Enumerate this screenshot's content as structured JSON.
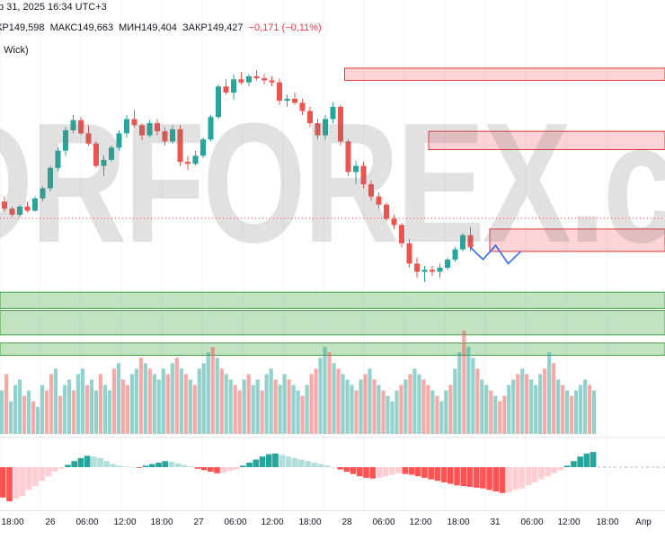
{
  "header": {
    "date_text": "р 31, 2025 16:34 UTC+3",
    "open": "КР149,598",
    "high": "МАКС149,663",
    "low": "МИН149,404",
    "close": "ЗАКР149,427",
    "change": "−0,171 (−0,11%)",
    "indicator_label": ", Wick)"
  },
  "watermark": {
    "text": "DRFOREX.c"
  },
  "x_axis": {
    "labels": [
      "18:00",
      "26",
      "06:00",
      "12:00",
      "18:00",
      "27",
      "06:00",
      "12:00",
      "18:00",
      "28",
      "06:00",
      "12:00",
      "18:00",
      "31",
      "06:00",
      "12:00",
      "18:00",
      "Апр"
    ]
  },
  "colors": {
    "bull": "#26a69a",
    "bear": "#ef5350",
    "zone_red": "#f7c6c9",
    "zone_green": "#bfe2bf",
    "projection": "#2962ff"
  },
  "chart_data": {
    "type": "candlestick",
    "candles": [
      [
        149.05,
        149.1,
        148.95,
        148.98
      ],
      [
        148.98,
        149.0,
        148.9,
        148.92
      ],
      [
        148.92,
        149.02,
        148.9,
        149.0
      ],
      [
        149.0,
        149.05,
        148.94,
        148.96
      ],
      [
        148.96,
        149.1,
        148.95,
        149.08
      ],
      [
        149.08,
        149.2,
        149.05,
        149.18
      ],
      [
        149.18,
        149.4,
        149.15,
        149.38
      ],
      [
        149.38,
        149.58,
        149.35,
        149.55
      ],
      [
        149.55,
        149.78,
        149.5,
        149.75
      ],
      [
        149.75,
        149.9,
        149.72,
        149.85
      ],
      [
        149.85,
        149.88,
        149.7,
        149.72
      ],
      [
        149.72,
        149.8,
        149.6,
        149.62
      ],
      [
        149.62,
        149.64,
        149.38,
        149.4
      ],
      [
        149.4,
        149.5,
        149.3,
        149.46
      ],
      [
        149.46,
        149.6,
        149.44,
        149.58
      ],
      [
        149.58,
        149.75,
        149.55,
        149.72
      ],
      [
        149.72,
        149.9,
        149.68,
        149.86
      ],
      [
        149.86,
        149.95,
        149.78,
        149.8
      ],
      [
        149.8,
        149.82,
        149.65,
        149.7
      ],
      [
        149.7,
        149.85,
        149.68,
        149.82
      ],
      [
        149.82,
        149.86,
        149.7,
        149.74
      ],
      [
        149.74,
        149.78,
        149.6,
        149.64
      ],
      [
        149.64,
        149.8,
        149.62,
        149.76
      ],
      [
        149.76,
        149.8,
        149.4,
        149.44
      ],
      [
        149.44,
        149.5,
        149.36,
        149.42
      ],
      [
        149.42,
        149.55,
        149.4,
        149.5
      ],
      [
        149.5,
        149.68,
        149.48,
        149.66
      ],
      [
        149.66,
        149.9,
        149.64,
        149.88
      ],
      [
        149.88,
        150.2,
        149.86,
        150.18
      ],
      [
        150.18,
        150.25,
        150.1,
        150.12
      ],
      [
        150.12,
        150.3,
        150.05,
        150.25
      ],
      [
        150.25,
        150.32,
        150.2,
        150.22
      ],
      [
        150.22,
        150.3,
        150.18,
        150.28
      ],
      [
        150.28,
        150.34,
        150.24,
        150.26
      ],
      [
        150.26,
        150.3,
        150.2,
        150.24
      ],
      [
        150.24,
        150.28,
        150.18,
        150.22
      ],
      [
        150.22,
        150.26,
        150.0,
        150.04
      ],
      [
        150.04,
        150.1,
        149.98,
        150.06
      ],
      [
        150.06,
        150.12,
        150.0,
        150.02
      ],
      [
        150.02,
        150.06,
        149.9,
        149.94
      ],
      [
        149.94,
        149.98,
        149.78,
        149.82
      ],
      [
        149.82,
        149.86,
        149.66,
        149.7
      ],
      [
        149.7,
        149.9,
        149.66,
        149.86
      ],
      [
        149.86,
        150.02,
        149.82,
        149.98
      ],
      [
        149.98,
        150.0,
        149.6,
        149.64
      ],
      [
        149.64,
        149.66,
        149.3,
        149.34
      ],
      [
        149.34,
        149.45,
        149.22,
        149.4
      ],
      [
        149.4,
        149.44,
        149.18,
        149.22
      ],
      [
        149.22,
        149.26,
        149.06,
        149.1
      ],
      [
        149.1,
        149.14,
        148.98,
        149.02
      ],
      [
        149.02,
        149.04,
        148.86,
        148.88
      ],
      [
        148.88,
        148.92,
        148.78,
        148.82
      ],
      [
        148.82,
        148.84,
        148.6,
        148.64
      ],
      [
        148.64,
        148.68,
        148.4,
        148.44
      ],
      [
        148.44,
        148.5,
        148.3,
        148.36
      ],
      [
        148.36,
        148.42,
        148.26,
        148.38
      ],
      [
        148.38,
        148.42,
        148.32,
        148.36
      ],
      [
        148.36,
        148.44,
        148.3,
        148.4
      ],
      [
        148.4,
        148.5,
        148.38,
        148.48
      ],
      [
        148.48,
        148.6,
        148.46,
        148.58
      ],
      [
        148.58,
        148.74,
        148.56,
        148.72
      ],
      [
        148.72,
        148.8,
        148.56,
        148.6
      ]
    ],
    "zones": [
      {
        "kind": "resistance",
        "from_index": 45,
        "top": 150.36,
        "bottom": 150.24
      },
      {
        "kind": "resistance",
        "from_index": 56,
        "top": 149.74,
        "bottom": 149.56
      },
      {
        "kind": "resistance",
        "from_index": 64,
        "top": 148.78,
        "bottom": 148.56
      },
      {
        "kind": "support",
        "from_index": 0,
        "top": 148.16,
        "bottom": 148.0
      },
      {
        "kind": "support",
        "from_index": 0,
        "top": 147.98,
        "bottom": 147.74
      },
      {
        "kind": "support",
        "from_index": 0,
        "top": 147.66,
        "bottom": 147.54
      }
    ],
    "projection": [
      148.6,
      148.48,
      148.62,
      148.44,
      148.56
    ],
    "volume": [
      40,
      55,
      30,
      45,
      50,
      35,
      40,
      30,
      25,
      45,
      40,
      55,
      60,
      35,
      45,
      50,
      40,
      55,
      60,
      45,
      50,
      40,
      55,
      45,
      40,
      60,
      65,
      50,
      45,
      55,
      60,
      70,
      65,
      60,
      55,
      50,
      60,
      55,
      65,
      70,
      60,
      55,
      50,
      45,
      60,
      65,
      75,
      80,
      70,
      60,
      55,
      50,
      45,
      40,
      50,
      55,
      45,
      50,
      40,
      55,
      60,
      50,
      45,
      55,
      50,
      45,
      40,
      35,
      45,
      55,
      60,
      70,
      80,
      75,
      65,
      60,
      55,
      50,
      45,
      40,
      50,
      55,
      60,
      50,
      45,
      40,
      35,
      30,
      40,
      45,
      50,
      55,
      60,
      55,
      50,
      45,
      40,
      35,
      30,
      40,
      45,
      60,
      75,
      95,
      80,
      70,
      60,
      50,
      45,
      40,
      35,
      30,
      35,
      45,
      50,
      55,
      60,
      55,
      50,
      45,
      55,
      60,
      75,
      65,
      50,
      45,
      40,
      35,
      40,
      45,
      50,
      45,
      40
    ],
    "momentum": [
      -40,
      -45,
      -42,
      -38,
      -30,
      -25,
      -18,
      -12,
      -6,
      -2,
      3,
      8,
      12,
      15,
      14,
      12,
      8,
      4,
      2,
      1,
      0,
      -1,
      2,
      4,
      6,
      8,
      7,
      5,
      3,
      1,
      -2,
      -4,
      -6,
      -8,
      -7,
      -5,
      -3,
      2,
      6,
      10,
      14,
      17,
      18,
      16,
      14,
      12,
      10,
      8,
      6,
      4,
      2,
      0,
      -3,
      -6,
      -9,
      -12,
      -14,
      -15,
      -14,
      -12,
      -10,
      -8,
      -9,
      -10,
      -12,
      -14,
      -16,
      -18,
      -20,
      -22,
      -24,
      -25,
      -26,
      -27,
      -28,
      -30,
      -32,
      -34,
      -33,
      -30,
      -28,
      -24,
      -20,
      -16,
      -12,
      -8,
      -4,
      2,
      8,
      14,
      18,
      20
    ]
  }
}
